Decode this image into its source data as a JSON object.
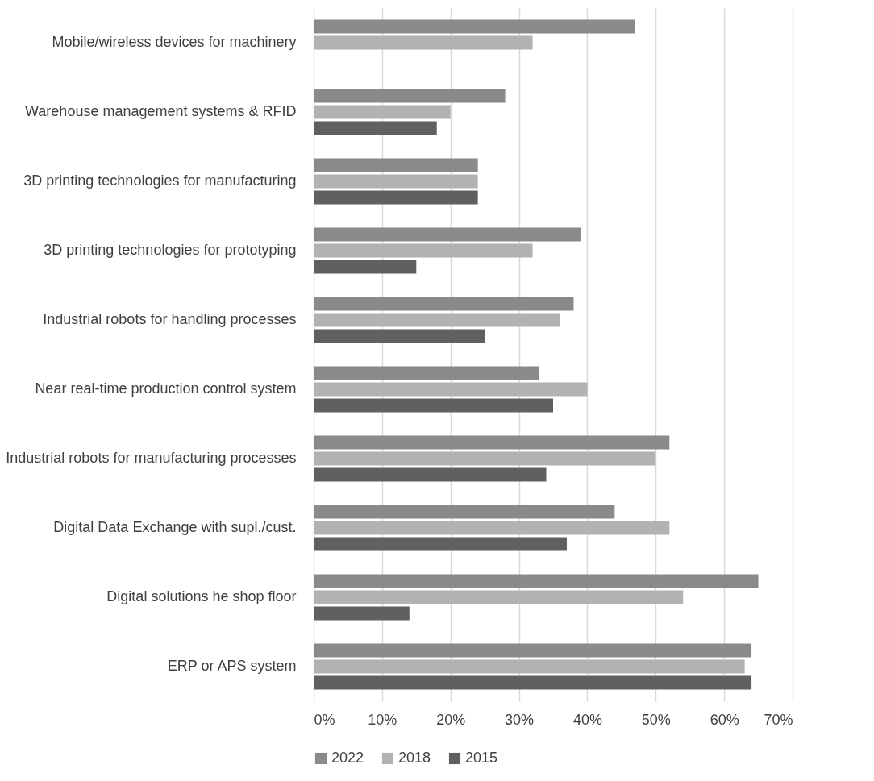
{
  "chart_data": {
    "type": "bar",
    "orientation": "horizontal",
    "categories": [
      "Mobile/wireless devices for machinery",
      "Warehouse management systems & RFID",
      "3D printing technologies for manufacturing",
      "3D printing technologies for prototyping",
      "Industrial robots for handling processes",
      "Near real-time production control system",
      "Industrial robots for manufacturing processes",
      "Digital Data Exchange with supl./cust.",
      "Digital solutions he shop floor",
      "ERP or APS system"
    ],
    "series": [
      {
        "name": "2022",
        "color": "#8a8a8a",
        "values": [
          47,
          28,
          24,
          39,
          38,
          33,
          52,
          44,
          65,
          64
        ]
      },
      {
        "name": "2018",
        "color": "#b2b2b2",
        "values": [
          32,
          20,
          24,
          32,
          36,
          40,
          50,
          52,
          54,
          63
        ]
      },
      {
        "name": "2015",
        "color": "#606060",
        "values": [
          null,
          18,
          24,
          15,
          25,
          35,
          34,
          37,
          14,
          64
        ]
      }
    ],
    "xlim": [
      0,
      70
    ],
    "xticks": [
      {
        "value": 0,
        "label": "0%"
      },
      {
        "value": 10,
        "label": "10%"
      },
      {
        "value": 20,
        "label": "20%"
      },
      {
        "value": 30,
        "label": "30%"
      },
      {
        "value": 40,
        "label": "40%"
      },
      {
        "value": 50,
        "label": "50%"
      },
      {
        "value": 60,
        "label": "60%"
      },
      {
        "value": 70,
        "label": "70%"
      }
    ],
    "grid": "x",
    "legend": "bottom"
  }
}
